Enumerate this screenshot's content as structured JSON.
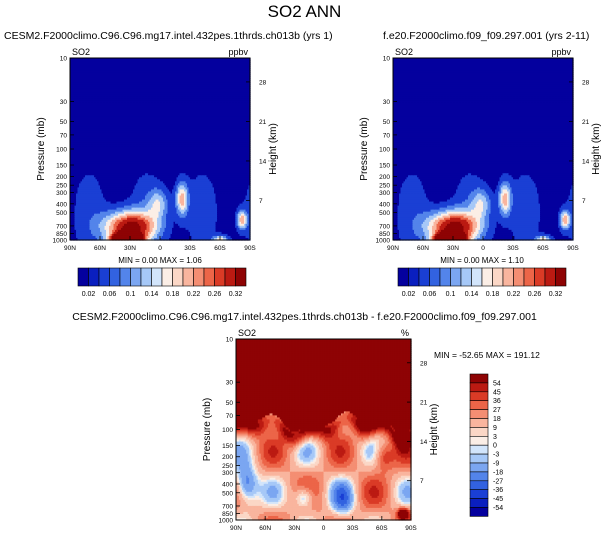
{
  "title": "SO2 ANN",
  "palette": [
    "#04009e",
    "#0a1fbf",
    "#1a3fd4",
    "#3262e0",
    "#5384ea",
    "#7ba6f1",
    "#a6c8f7",
    "#d2e5fb",
    "#fbeee6",
    "#fbd7c6",
    "#f9b59e",
    "#f48e73",
    "#ec6548",
    "#da3b26",
    "#bb1a12",
    "#8e0304"
  ],
  "panels": [
    {
      "id": "top-left",
      "title": "CESM2.F2000climo.C96.C96.mg17.intel.432pes.1thrds.ch013b (yrs 1)",
      "var_label": "SO2",
      "units": "ppbv",
      "stats": "MIN =  0.00  MAX =  1.06",
      "levels": [
        0.02,
        0.06,
        0.1,
        0.14,
        0.18,
        0.22,
        0.26,
        0.32
      ],
      "level_labels": [
        "0.02",
        "0.06",
        "0.1",
        "0.14",
        "0.18",
        "0.22",
        "0.26",
        "0.32"
      ],
      "bar_palette_idx": [
        0,
        1,
        2,
        3,
        4,
        5,
        6,
        7,
        8,
        9,
        10,
        11,
        12,
        13,
        14,
        15
      ],
      "field": "abs",
      "max": 1.06
    },
    {
      "id": "top-right",
      "title": "f.e20.F2000climo.f09_f09.297.001 (yrs 2-11)",
      "var_label": "SO2",
      "units": "ppbv",
      "stats": "MIN =  0.00  MAX =  1.10",
      "levels": [
        0.02,
        0.06,
        0.1,
        0.14,
        0.18,
        0.22,
        0.26,
        0.32
      ],
      "level_labels": [
        "0.02",
        "0.06",
        "0.1",
        "0.14",
        "0.18",
        "0.22",
        "0.26",
        "0.32"
      ],
      "bar_palette_idx": [
        0,
        1,
        2,
        3,
        4,
        5,
        6,
        7,
        8,
        9,
        10,
        11,
        12,
        13,
        14,
        15
      ],
      "field": "abs",
      "max": 1.1
    },
    {
      "id": "bottom-diff",
      "title": "CESM2.F2000climo.C96.C96.mg17.intel.432pes.1thrds.ch013b - f.e20.F2000climo.f09_f09.297.001",
      "var_label": "SO2",
      "units": "%",
      "stats": "MIN = -52.65  MAX = 191.12",
      "levels": [
        -54,
        -45,
        -36,
        -27,
        -18,
        -9,
        -3,
        0,
        3,
        9,
        18,
        27,
        36,
        45,
        54
      ],
      "level_labels": [
        "-54",
        "-45",
        "-36",
        "-27",
        "-18",
        "-9",
        "-3",
        "0",
        "3",
        "9",
        "18",
        "27",
        "36",
        "45",
        "54"
      ],
      "field": "diff",
      "min": -52.65,
      "max": 191.12
    }
  ],
  "axes": {
    "ylabel": "Pressure (mb)",
    "y2label": "Height (km)",
    "y_scale": "log",
    "y_range_mb": [
      1000,
      10
    ],
    "y_ticks_mb": [
      10,
      30,
      50,
      70,
      100,
      150,
      200,
      250,
      300,
      400,
      500,
      700,
      850,
      1000
    ],
    "y2_ticks_km": [
      7,
      14,
      21,
      28
    ],
    "x_range_lat": [
      90,
      -90
    ],
    "x_ticks_lat": [
      90,
      60,
      30,
      0,
      -30,
      -60,
      -90
    ],
    "x_tick_labels": [
      "90N",
      "60N",
      "30N",
      "0",
      "30S",
      "60S",
      "90S"
    ]
  }
}
